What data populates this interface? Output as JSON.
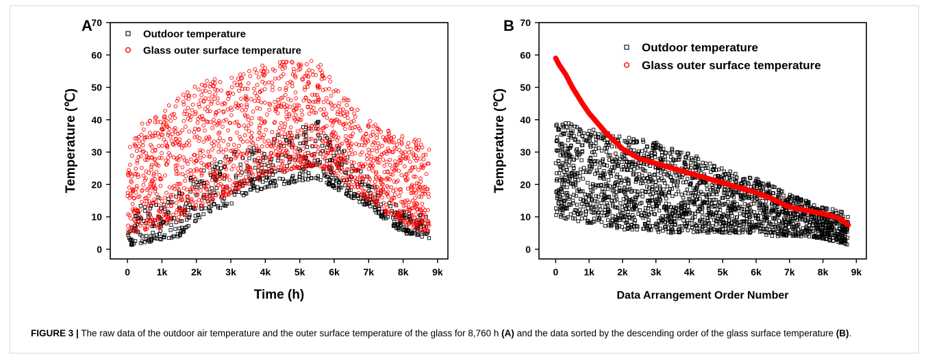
{
  "chart_data": [
    {
      "panel_label": "A",
      "type": "scatter",
      "xlabel": "Time (h)",
      "ylabel": "Temperature (℃)",
      "xlim": [
        -500,
        9300
      ],
      "ylim": [
        -3,
        70
      ],
      "xticks": [
        0,
        1000,
        2000,
        3000,
        4000,
        5000,
        6000,
        7000,
        8000,
        9000
      ],
      "xtick_labels": [
        "0",
        "1k",
        "2k",
        "3k",
        "4k",
        "5k",
        "6k",
        "7k",
        "8k",
        "9k"
      ],
      "yticks": [
        0,
        10,
        20,
        30,
        40,
        50,
        60,
        70
      ],
      "ytick_labels": [
        "0",
        "10",
        "20",
        "30",
        "40",
        "50",
        "60",
        "70"
      ],
      "legend_position": "top-left",
      "series": [
        {
          "name": "Outdoor temperature",
          "marker": "square",
          "color": "#000000",
          "x": [
            0,
            500,
            1000,
            1500,
            2000,
            2500,
            3000,
            3500,
            4000,
            4500,
            5000,
            5500,
            6000,
            6500,
            7000,
            7500,
            8000,
            8500,
            8760
          ],
          "y_min": [
            1,
            2,
            3,
            4,
            9,
            12,
            14,
            17,
            19,
            20,
            21,
            22,
            19,
            16,
            13,
            9,
            5,
            4,
            3
          ],
          "y_max": [
            12,
            14,
            17,
            20,
            24,
            27,
            30,
            32,
            34,
            36,
            38,
            40,
            34,
            28,
            22,
            16,
            12,
            11,
            10
          ]
        },
        {
          "name": "Glass outer surface temperature",
          "marker": "circle",
          "color": "#ff0000",
          "x": [
            0,
            500,
            1000,
            1500,
            2000,
            2500,
            3000,
            3500,
            4000,
            4500,
            5000,
            5500,
            6000,
            6500,
            7000,
            7500,
            8000,
            8500,
            8760
          ],
          "y_min": [
            5,
            6,
            7,
            9,
            12,
            15,
            17,
            20,
            22,
            24,
            25,
            26,
            23,
            19,
            15,
            11,
            8,
            6,
            5
          ],
          "y_max": [
            36,
            40,
            43,
            47,
            51,
            53,
            55,
            56,
            57,
            58,
            58,
            59,
            51,
            45,
            40,
            37,
            35,
            34,
            33
          ]
        }
      ]
    },
    {
      "panel_label": "B",
      "type": "scatter",
      "xlabel": "Data Arrangement Order Number",
      "ylabel": "Temperature (℃)",
      "xlim": [
        -500,
        9300
      ],
      "ylim": [
        -3,
        70
      ],
      "xticks": [
        0,
        1000,
        2000,
        3000,
        4000,
        5000,
        6000,
        7000,
        8000,
        9000
      ],
      "xtick_labels": [
        "0",
        "1k",
        "2k",
        "3k",
        "4k",
        "5k",
        "6k",
        "7k",
        "8k",
        "9k"
      ],
      "yticks": [
        0,
        10,
        20,
        30,
        40,
        50,
        60,
        70
      ],
      "ytick_labels": [
        "0",
        "10",
        "20",
        "30",
        "40",
        "50",
        "60",
        "70"
      ],
      "legend_position": "top-right",
      "series": [
        {
          "name": "Outdoor temperature",
          "marker": "square",
          "color": "#000000",
          "x": [
            0,
            500,
            1000,
            1500,
            2000,
            2500,
            3000,
            3500,
            4000,
            4500,
            5000,
            5500,
            6000,
            6500,
            7000,
            7500,
            8000,
            8500,
            8760
          ],
          "y_min": [
            10,
            9,
            8,
            7,
            6,
            6,
            5,
            5,
            5,
            5,
            5,
            5,
            5,
            4,
            4,
            4,
            3,
            2,
            1
          ],
          "y_max": [
            39,
            39,
            38,
            36,
            35,
            34,
            33,
            31,
            30,
            27,
            25,
            23,
            22,
            20,
            17,
            15,
            13,
            12,
            10
          ]
        },
        {
          "name": "Glass outer surface temperature",
          "marker": "circle",
          "color": "#ff0000",
          "x": [
            0,
            100,
            300,
            500,
            800,
            1000,
            1500,
            2000,
            2500,
            3000,
            3500,
            4000,
            4500,
            5000,
            5500,
            6000,
            6500,
            7000,
            7500,
            8000,
            8500,
            8760
          ],
          "y": [
            59,
            57,
            54,
            50,
            45,
            42,
            36,
            31,
            28,
            26.5,
            25,
            23.5,
            22,
            20.5,
            19,
            17.5,
            15.5,
            13,
            12,
            11,
            9.5,
            7.5
          ]
        }
      ]
    }
  ],
  "caption": {
    "label": "FIGURE 3 |",
    "text_1": " The raw data of the outdoor air temperature and the outer surface temperature of the glass for 8,760 h ",
    "ref_a": "(A)",
    "text_2": " and the data sorted by the descending order of the glass surface temperature ",
    "ref_b": "(B)",
    "text_3": "."
  }
}
